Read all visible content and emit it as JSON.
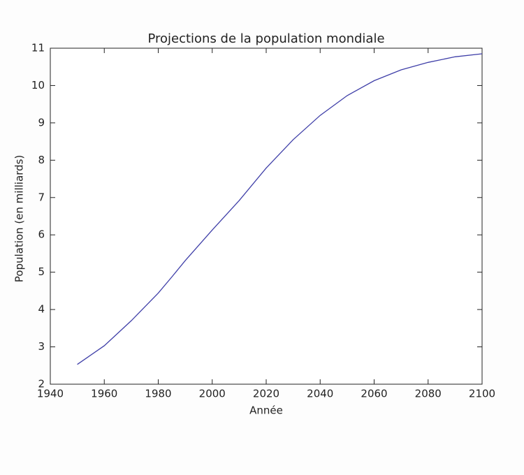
{
  "chart_data": {
    "type": "line",
    "title": "Projections de la population mondiale",
    "xlabel": "Année",
    "ylabel": "Population (en milliards)",
    "x": [
      1950,
      1960,
      1970,
      1980,
      1985,
      1990,
      2000,
      2010,
      2020,
      2030,
      2040,
      2050,
      2060,
      2070,
      2080,
      2090,
      2100
    ],
    "series": [
      {
        "name": "Population",
        "color": "#3f3fa8",
        "values": [
          2.53,
          3.03,
          3.7,
          4.44,
          4.87,
          5.31,
          6.13,
          6.92,
          7.79,
          8.55,
          9.2,
          9.73,
          10.13,
          10.42,
          10.62,
          10.77,
          10.85
        ]
      }
    ],
    "xlim": [
      1940,
      2100
    ],
    "xticks": [
      1940,
      1960,
      1980,
      2000,
      2020,
      2040,
      2060,
      2080,
      2100
    ],
    "ylim": [
      2,
      11
    ],
    "yticks": [
      2,
      3,
      4,
      5,
      6,
      7,
      8,
      9,
      10,
      11
    ]
  }
}
